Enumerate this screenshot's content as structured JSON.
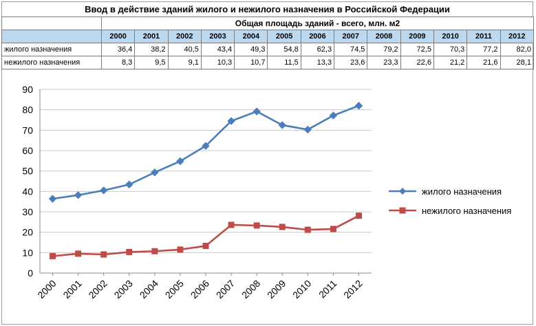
{
  "title": "Ввод в действие зданий жилого и нежилого назначения в Российской Федерации",
  "table": {
    "subtitle": "Общая площадь зданий - всего, млн. м2",
    "years": [
      "2000",
      "2001",
      "2002",
      "2003",
      "2004",
      "2005",
      "2006",
      "2007",
      "2008",
      "2009",
      "2010",
      "2011",
      "2012"
    ],
    "rows": [
      {
        "label": "жилого назначения",
        "values": [
          "36,4",
          "38,2",
          "40,5",
          "43,4",
          "49,3",
          "54,8",
          "62,3",
          "74,5",
          "79,2",
          "72,5",
          "70,3",
          "77,2",
          "82,0"
        ]
      },
      {
        "label": "нежилого назначения",
        "values": [
          "8,3",
          "9,5",
          "9,1",
          "10,3",
          "10,7",
          "11,5",
          "13,3",
          "23,6",
          "23,3",
          "22,6",
          "21,2",
          "21,6",
          "28,1"
        ]
      }
    ]
  },
  "chart_data": {
    "type": "line",
    "x": [
      "2000",
      "2001",
      "2002",
      "2003",
      "2004",
      "2005",
      "2006",
      "2007",
      "2008",
      "2009",
      "2010",
      "2011",
      "2012"
    ],
    "series": [
      {
        "name": "жилого назначения",
        "color": "#4a7ebb",
        "marker": "diamond",
        "values": [
          36.4,
          38.2,
          40.5,
          43.4,
          49.3,
          54.8,
          62.3,
          74.5,
          79.2,
          72.5,
          70.3,
          77.2,
          82.0
        ]
      },
      {
        "name": "нежилого назначения",
        "color": "#be4b48",
        "marker": "square",
        "values": [
          8.3,
          9.5,
          9.1,
          10.3,
          10.7,
          11.5,
          13.3,
          23.6,
          23.3,
          22.6,
          21.2,
          21.6,
          28.1
        ]
      }
    ],
    "ylim": [
      0,
      90
    ],
    "yticks": [
      "0",
      "10",
      "20",
      "30",
      "40",
      "50",
      "60",
      "70",
      "80",
      "90"
    ],
    "grid": true,
    "legend": "right"
  }
}
